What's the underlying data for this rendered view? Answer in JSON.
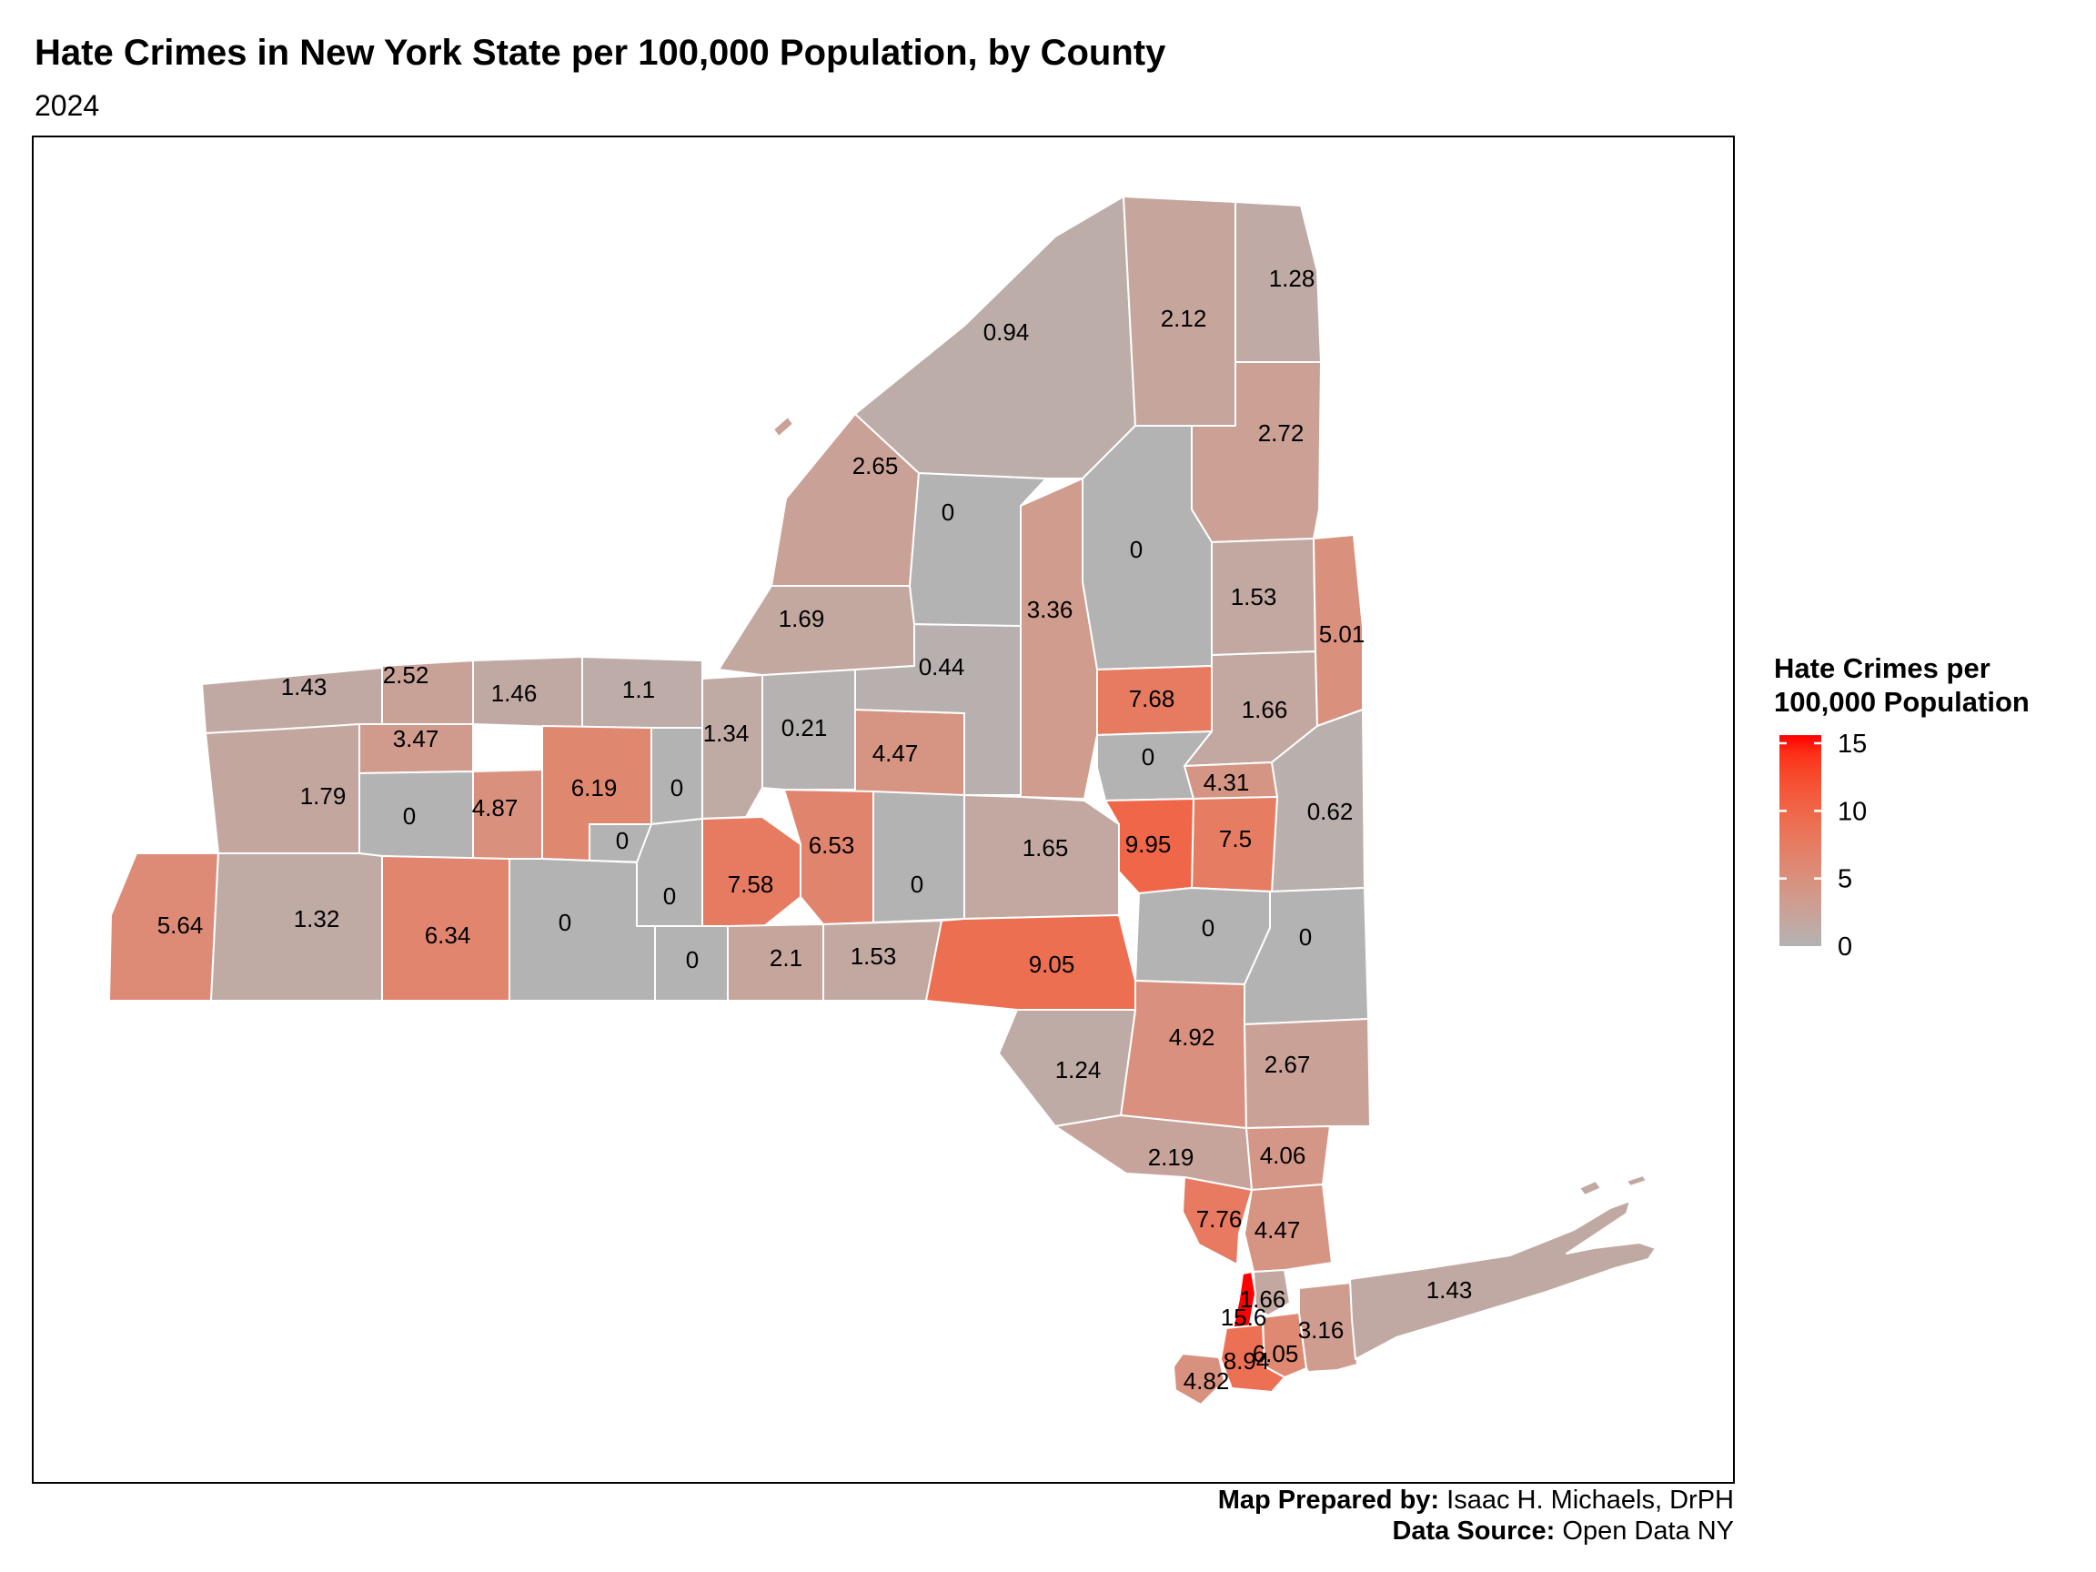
{
  "title": "Hate Crimes in New York State per 100,000 Population, by County",
  "subtitle": "2024",
  "legend": {
    "title_line1": "Hate Crimes per",
    "title_line2": "100,000 Population",
    "ticks": [
      15,
      10,
      5,
      0
    ],
    "min": 0,
    "max": 15.6,
    "low_color": "#B3B3B3",
    "high_color": "#FF0000"
  },
  "footer": {
    "prepared_by_label": "Map Prepared by:",
    "prepared_by_value": "Isaac H. Michaels, DrPH",
    "source_label": "Data Source:",
    "source_value": "Open Data NY"
  },
  "chart_data": {
    "type": "choropleth",
    "region": "New York State, by county",
    "unit": "hate crimes per 100,000 population",
    "year": "2024",
    "value_domain": [
      0,
      15.6
    ],
    "counties": [
      {
        "id": "niagara",
        "name": "Niagara",
        "value": 1.43,
        "label": "1.43"
      },
      {
        "id": "orleans",
        "name": "Orleans",
        "value": 2.52,
        "label": "2.52"
      },
      {
        "id": "monroe",
        "name": "Monroe",
        "value": 1.46,
        "label": "1.46"
      },
      {
        "id": "wayne",
        "name": "Wayne",
        "value": 1.1,
        "label": "1.1"
      },
      {
        "id": "genesee",
        "name": "Genesee",
        "value": 3.47,
        "label": "3.47"
      },
      {
        "id": "erie",
        "name": "Erie",
        "value": 1.79,
        "label": "1.79"
      },
      {
        "id": "wyoming",
        "name": "Wyoming",
        "value": 0,
        "label": "0"
      },
      {
        "id": "livingston",
        "name": "Livingston",
        "value": 4.87,
        "label": "4.87"
      },
      {
        "id": "ontario",
        "name": "Ontario",
        "value": 6.19,
        "label": "6.19"
      },
      {
        "id": "yates",
        "name": "Yates",
        "value": 0,
        "label": "0"
      },
      {
        "id": "seneca",
        "name": "Seneca",
        "value": 0,
        "label": "0"
      },
      {
        "id": "cayuga",
        "name": "Cayuga",
        "value": 1.34,
        "label": "1.34"
      },
      {
        "id": "onondaga",
        "name": "Onondaga",
        "value": 0.21,
        "label": "0.21"
      },
      {
        "id": "madison",
        "name": "Madison",
        "value": 4.47,
        "label": "4.47"
      },
      {
        "id": "cortland",
        "name": "Cortland",
        "value": 6.53,
        "label": "6.53"
      },
      {
        "id": "tompkins",
        "name": "Tompkins",
        "value": 7.58,
        "label": "7.58"
      },
      {
        "id": "chautauqua",
        "name": "Chautauqua",
        "value": 5.64,
        "label": "5.64"
      },
      {
        "id": "cattaraugus",
        "name": "Cattaraugus",
        "value": 1.32,
        "label": "1.32"
      },
      {
        "id": "allegany",
        "name": "Allegany",
        "value": 6.34,
        "label": "6.34"
      },
      {
        "id": "steuben",
        "name": "Steuben",
        "value": 0,
        "label": "0"
      },
      {
        "id": "schuyler",
        "name": "Schuyler",
        "value": 0,
        "label": "0"
      },
      {
        "id": "chemung",
        "name": "Chemung",
        "value": 0,
        "label": "0"
      },
      {
        "id": "tioga",
        "name": "Tioga",
        "value": 2.1,
        "label": "2.1"
      },
      {
        "id": "broome",
        "name": "Broome",
        "value": 1.53,
        "label": "1.53"
      },
      {
        "id": "chenango",
        "name": "Chenango",
        "value": 0,
        "label": "0"
      },
      {
        "id": "oswego",
        "name": "Oswego",
        "value": 1.69,
        "label": "1.69"
      },
      {
        "id": "oneida",
        "name": "Oneida",
        "value": 0.44,
        "label": "0.44"
      },
      {
        "id": "jefferson",
        "name": "Jefferson",
        "value": 2.65,
        "label": "2.65"
      },
      {
        "id": "lewis",
        "name": "Lewis",
        "value": 0,
        "label": "0"
      },
      {
        "id": "stlawrence",
        "name": "St. Lawrence",
        "value": 0.94,
        "label": "0.94"
      },
      {
        "id": "franklin",
        "name": "Franklin",
        "value": 2.12,
        "label": "2.12"
      },
      {
        "id": "clinton",
        "name": "Clinton",
        "value": 1.28,
        "label": "1.28"
      },
      {
        "id": "essex",
        "name": "Essex",
        "value": 2.72,
        "label": "2.72"
      },
      {
        "id": "hamilton",
        "name": "Hamilton",
        "value": 0,
        "label": "0"
      },
      {
        "id": "herkimer",
        "name": "Herkimer",
        "value": 3.36,
        "label": "3.36"
      },
      {
        "id": "fulton",
        "name": "Fulton",
        "value": 7.68,
        "label": "7.68"
      },
      {
        "id": "montgomery",
        "name": "Montgomery",
        "value": 0,
        "label": "0"
      },
      {
        "id": "saratoga",
        "name": "Saratoga",
        "value": 1.66,
        "label": "1.66"
      },
      {
        "id": "warren",
        "name": "Warren",
        "value": 1.53,
        "label": "1.53"
      },
      {
        "id": "washington",
        "name": "Washington",
        "value": 5.01,
        "label": "5.01"
      },
      {
        "id": "schenectady",
        "name": "Schenectady",
        "value": 4.31,
        "label": "4.31"
      },
      {
        "id": "rensselaer",
        "name": "Rensselaer",
        "value": 0.62,
        "label": "0.62"
      },
      {
        "id": "albany",
        "name": "Albany",
        "value": 7.5,
        "label": "7.5"
      },
      {
        "id": "schoharie",
        "name": "Schoharie",
        "value": 9.95,
        "label": "9.95"
      },
      {
        "id": "otsego",
        "name": "Otsego",
        "value": 1.65,
        "label": "1.65"
      },
      {
        "id": "delaware",
        "name": "Delaware",
        "value": 9.05,
        "label": "9.05"
      },
      {
        "id": "greene",
        "name": "Greene",
        "value": 0,
        "label": "0"
      },
      {
        "id": "columbia",
        "name": "Columbia",
        "value": 0,
        "label": "0"
      },
      {
        "id": "ulster",
        "name": "Ulster",
        "value": 4.92,
        "label": "4.92"
      },
      {
        "id": "sullivan",
        "name": "Sullivan",
        "value": 1.24,
        "label": "1.24"
      },
      {
        "id": "dutchess",
        "name": "Dutchess",
        "value": 2.67,
        "label": "2.67"
      },
      {
        "id": "orange",
        "name": "Orange",
        "value": 2.19,
        "label": "2.19"
      },
      {
        "id": "putnam",
        "name": "Putnam",
        "value": 4.06,
        "label": "4.06"
      },
      {
        "id": "rockland",
        "name": "Rockland",
        "value": 7.76,
        "label": "7.76"
      },
      {
        "id": "westchester",
        "name": "Westchester",
        "value": 4.47,
        "label": "4.47"
      },
      {
        "id": "bronx",
        "name": "Bronx",
        "value": 1.66,
        "label": "1.66"
      },
      {
        "id": "manhattan",
        "name": "New York (Manhattan)",
        "value": 15.6,
        "label": "15.6"
      },
      {
        "id": "queens",
        "name": "Queens",
        "value": 6.05,
        "label": "6.05"
      },
      {
        "id": "brooklyn",
        "name": "Kings (Brooklyn)",
        "value": 8.94,
        "label": "8.94"
      },
      {
        "id": "staten_island",
        "name": "Richmond (Staten Island)",
        "value": 4.82,
        "label": "4.82"
      },
      {
        "id": "nassau",
        "name": "Nassau",
        "value": 3.16,
        "label": "3.16"
      },
      {
        "id": "suffolk",
        "name": "Suffolk",
        "value": 1.43,
        "label": "1.43"
      }
    ]
  }
}
